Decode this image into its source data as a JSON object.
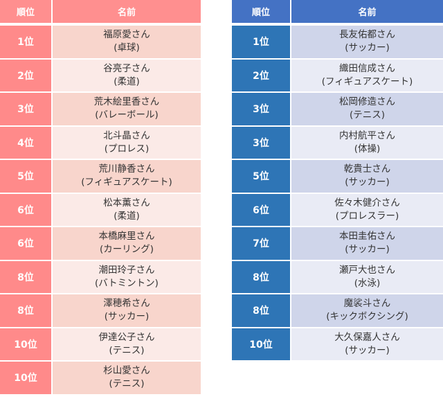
{
  "left_table": {
    "header": {
      "rank": "順位",
      "name": "名前"
    },
    "rows": [
      {
        "rank": "1位",
        "name": "福原愛さん",
        "sport": "(卓球)"
      },
      {
        "rank": "2位",
        "name": "谷亮子さん",
        "sport": "(柔道)"
      },
      {
        "rank": "3位",
        "name": "荒木絵里香さん",
        "sport": "(バレーボール)"
      },
      {
        "rank": "4位",
        "name": "北斗晶さん",
        "sport": "(プロレス)"
      },
      {
        "rank": "5位",
        "name": "荒川静香さん",
        "sport": "(フィギュアスケート)"
      },
      {
        "rank": "6位",
        "name": "松本薫さん",
        "sport": "(柔道)"
      },
      {
        "rank": "6位",
        "name": "本橋麻里さん",
        "sport": "(カーリング)"
      },
      {
        "rank": "8位",
        "name": "潮田玲子さん",
        "sport": "(バトミントン)"
      },
      {
        "rank": "8位",
        "name": "澤穂希さん",
        "sport": "(サッカー)"
      },
      {
        "rank": "10位",
        "name": "伊達公子さん",
        "sport": "(テニス)"
      },
      {
        "rank": "10位",
        "name": "杉山愛さん",
        "sport": "(テニス)"
      }
    ]
  },
  "right_table": {
    "header": {
      "rank": "順位",
      "name": "名前"
    },
    "rows": [
      {
        "rank": "1位",
        "name": "長友佑都さん",
        "sport": "(サッカー)"
      },
      {
        "rank": "2位",
        "name": "織田信成さん",
        "sport": "(フィギュアスケート)"
      },
      {
        "rank": "3位",
        "name": "松岡修造さん",
        "sport": "(テニス)"
      },
      {
        "rank": "3位",
        "name": "内村航平さん",
        "sport": "(体操)"
      },
      {
        "rank": "5位",
        "name": "乾貴士さん",
        "sport": "(サッカー)"
      },
      {
        "rank": "6位",
        "name": "佐々木健介さん",
        "sport": "(プロレスラー)"
      },
      {
        "rank": "7位",
        "name": "本田圭佑さん",
        "sport": "(サッカー)"
      },
      {
        "rank": "8位",
        "name": "瀬戸大也さん",
        "sport": "(水泳)"
      },
      {
        "rank": "8位",
        "name": "魔裟斗さん",
        "sport": "(キックボクシング)"
      },
      {
        "rank": "10位",
        "name": "大久保嘉人さん",
        "sport": "(サッカー)"
      }
    ]
  },
  "colors": {
    "left_header": "#FF8F8F",
    "left_rank": "#FF8A8A",
    "left_row_a": "#F8D5CC",
    "left_row_b": "#FBEAE7",
    "right_header": "#4472C4",
    "right_rank": "#2E75B6",
    "right_row_a": "#CFD5EA",
    "right_row_b": "#E9EBF5"
  }
}
